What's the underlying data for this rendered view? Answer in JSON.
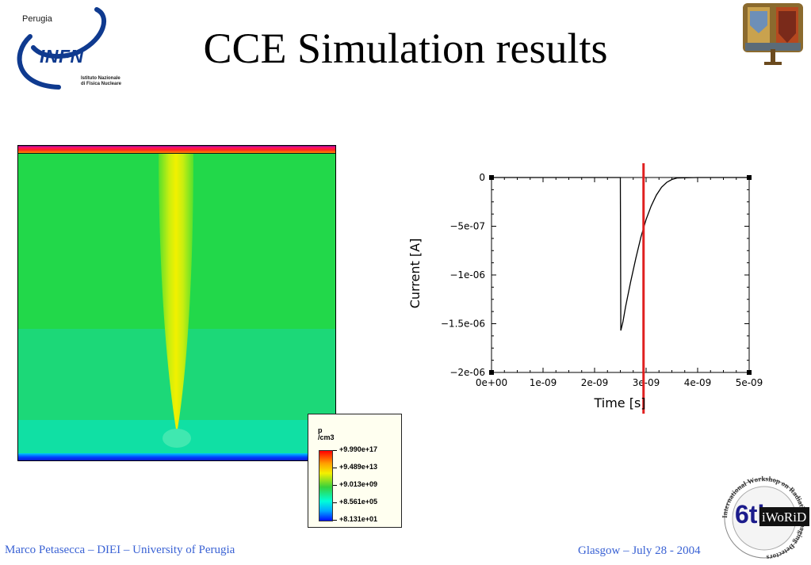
{
  "header": {
    "title": "CCE Simulation results",
    "infn_logo": {
      "city": "Perugia",
      "name": "INFN",
      "subtitle_line1": "Istituto Nazionale",
      "subtitle_line2": "di Fisica Nucleare"
    },
    "university_logo_icon": "university-of-perugia-crest-icon"
  },
  "simulation_map": {
    "legend": {
      "quantity": "p",
      "unit": "/cm3",
      "values": [
        "+9.990e+17",
        "+9.489e+13",
        "+9.013e+09",
        "+8.561e+05",
        "+8.131e+01"
      ]
    }
  },
  "chart_data": {
    "type": "line",
    "xlabel": "Time [s]",
    "ylabel": "Current [A]",
    "xlim": [
      0,
      5e-09
    ],
    "ylim": [
      -2e-06,
      0
    ],
    "x_ticks": [
      "0e+00",
      "1e-09",
      "2e-09",
      "3e-09",
      "4e-09",
      "5e-09"
    ],
    "y_ticks": [
      "0",
      "−5e-07",
      "−1e-06",
      "−1.5e-06",
      "−2e-06"
    ],
    "series": [
      {
        "x": [
          0,
          2.5e-09,
          2.51e-09,
          2.55e-09,
          2.6e-09,
          2.7e-09,
          2.8e-09,
          2.9e-09,
          3e-09,
          3.1e-09,
          3.2e-09,
          3.3e-09,
          3.4e-09,
          3.5e-09,
          3.6e-09,
          4e-09,
          5e-09
        ],
        "y": [
          0,
          0,
          -1.57e-06,
          -1.48e-06,
          -1.33e-06,
          -1.07e-06,
          -8.3e-07,
          -6.1e-07,
          -4.3e-07,
          -2.9e-07,
          -1.8e-07,
          -1e-07,
          -5e-08,
          -2e-08,
          -5e-09,
          0,
          0
        ]
      }
    ],
    "marker_x": 2.95e-09,
    "marker_color": "#e02020"
  },
  "footer": {
    "left": "Marco Petasecca – DIEI – University of Perugia",
    "right": "Glasgow – July 28 - 2004",
    "logo": {
      "ring_text": "International Workshop on Radiation Imaging Detectors",
      "number": "6th",
      "acronym": "iWoRiD"
    }
  }
}
